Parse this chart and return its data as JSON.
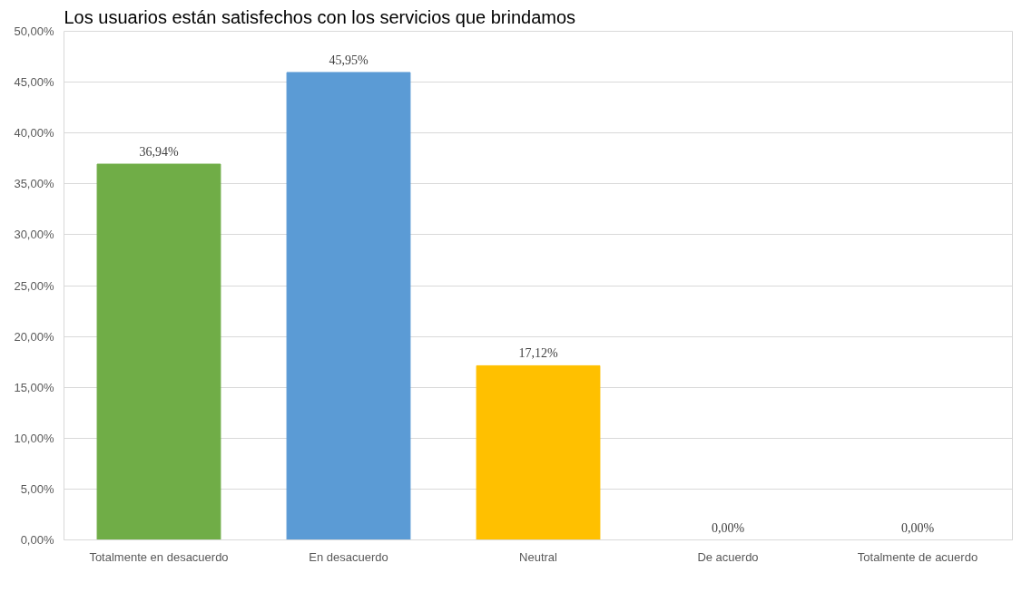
{
  "chart_data": {
    "type": "bar",
    "title": "Los usuarios están satisfechos con los servicios que brindamos",
    "categories": [
      "Totalmente en desacuerdo",
      "En desacuerdo",
      "Neutral",
      "De acuerdo",
      "Totalmente de acuerdo"
    ],
    "values": [
      36.94,
      45.95,
      17.12,
      0,
      0
    ],
    "colors": [
      "#70ad47",
      "#5b9bd5",
      "#ffc000",
      "#a5a5a5",
      "#4472c4"
    ],
    "value_labels": [
      "36,94%",
      "45,95%",
      "17,12%",
      "0,00%",
      "0,00%"
    ],
    "ylim": [
      0,
      50
    ],
    "yticks": [
      {
        "value": 0,
        "label": "0,00%"
      },
      {
        "value": 5,
        "label": "5,00%"
      },
      {
        "value": 10,
        "label": "10,00%"
      },
      {
        "value": 15,
        "label": "15,00%"
      },
      {
        "value": 20,
        "label": "20,00%"
      },
      {
        "value": 25,
        "label": "25,00%"
      },
      {
        "value": 30,
        "label": "30,00%"
      },
      {
        "value": 35,
        "label": "35,00%"
      },
      {
        "value": 40,
        "label": "40,00%"
      },
      {
        "value": 45,
        "label": "45,00%"
      },
      {
        "value": 50,
        "label": "50,00%"
      }
    ],
    "grid": "y"
  }
}
